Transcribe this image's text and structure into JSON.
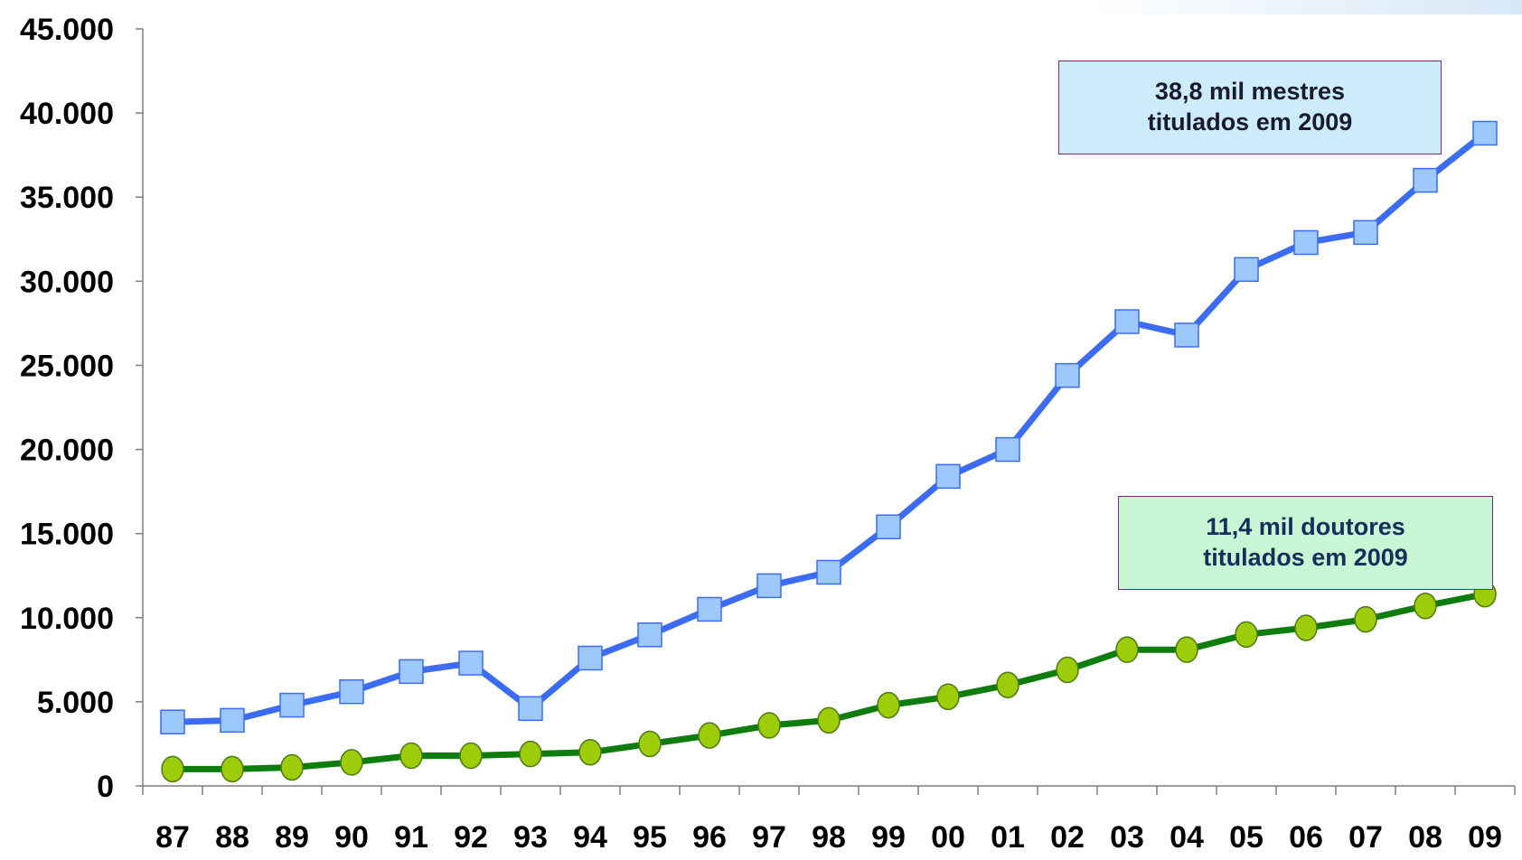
{
  "chart_data": {
    "type": "line",
    "categories": [
      "87",
      "88",
      "89",
      "90",
      "91",
      "92",
      "93",
      "94",
      "95",
      "96",
      "97",
      "98",
      "99",
      "00",
      "01",
      "02",
      "03",
      "04",
      "05",
      "06",
      "07",
      "08",
      "09"
    ],
    "ylim": [
      0,
      45000
    ],
    "y_ticks": [
      "0",
      "5.000",
      "10.000",
      "15.000",
      "20.000",
      "25.000",
      "30.000",
      "35.000",
      "40.000",
      "45.000"
    ],
    "y_tick_values": [
      0,
      5000,
      10000,
      15000,
      20000,
      25000,
      30000,
      35000,
      40000,
      45000
    ],
    "grid": false,
    "series": [
      {
        "key": "mestres",
        "line_color": "#3d6cf4",
        "marker": "square",
        "marker_fill": "#9cc8fc",
        "marker_stroke": "#3d6cf4",
        "values": [
          3800,
          3900,
          4800,
          5600,
          6800,
          7300,
          4600,
          7600,
          8980,
          10500,
          11900,
          12700,
          15400,
          18400,
          20000,
          24400,
          27600,
          26800,
          30700,
          32300,
          32900,
          36000,
          38800
        ]
      },
      {
        "key": "doutores",
        "line_color": "#0e7d0e",
        "marker": "circle",
        "marker_fill": "#9ccc0a",
        "marker_stroke": "#4a7a10",
        "values": [
          1000,
          1000,
          1100,
          1400,
          1800,
          1800,
          1900,
          2000,
          2500,
          3000,
          3600,
          3900,
          4800,
          5300,
          6000,
          6900,
          8100,
          8100,
          9000,
          9400,
          9900,
          10700,
          11400
        ]
      }
    ],
    "annotations": [
      {
        "key": "mestres",
        "lines": [
          "38,8 mil mestres",
          "titulados em 2009"
        ],
        "text_color": "#1a1a2e",
        "bg": "#ccecfc"
      },
      {
        "key": "doutores",
        "lines": [
          "11,4 mil doutores",
          "titulados em 2009"
        ],
        "text_color": "#12315a",
        "bg": "#c8f5d4"
      }
    ]
  }
}
